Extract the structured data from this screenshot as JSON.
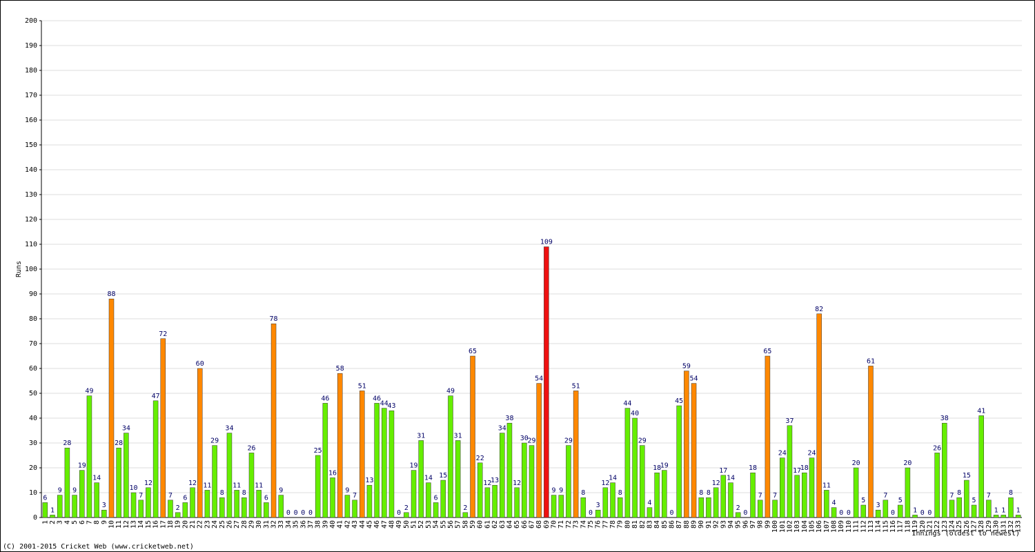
{
  "chart_data": {
    "type": "bar",
    "y_label": "Runs",
    "x_label": "Innings (oldest to newest)",
    "footer": "(C) 2001-2015 Cricket Web (www.cricketweb.net)",
    "categories": [
      "1",
      "2",
      "3",
      "4",
      "5",
      "6",
      "7",
      "8",
      "9",
      "10",
      "11",
      "12",
      "13",
      "14",
      "15",
      "16",
      "17",
      "18",
      "19",
      "20",
      "21",
      "22",
      "23",
      "24",
      "25",
      "26",
      "27",
      "28",
      "29",
      "30",
      "31",
      "32",
      "33",
      "34",
      "35",
      "36",
      "37",
      "38",
      "39",
      "40",
      "41",
      "42",
      "43",
      "44",
      "45",
      "46",
      "47",
      "48",
      "49",
      "50",
      "51",
      "52",
      "53",
      "54",
      "55",
      "56",
      "57",
      "58",
      "59",
      "60",
      "61",
      "62",
      "63",
      "64",
      "65",
      "66",
      "67",
      "68",
      "69",
      "70",
      "71",
      "72",
      "73",
      "74",
      "75",
      "76",
      "77",
      "78",
      "79",
      "80",
      "81",
      "82",
      "83",
      "84",
      "85",
      "86",
      "87",
      "88",
      "89",
      "90",
      "91",
      "92",
      "93",
      "94",
      "95",
      "96",
      "97",
      "98",
      "99",
      "100",
      "101",
      "102",
      "103",
      "104",
      "105",
      "106",
      "107",
      "108",
      "109",
      "110",
      "111",
      "112",
      "113",
      "114",
      "115",
      "116",
      "117",
      "118",
      "119",
      "120",
      "121",
      "122",
      "123",
      "124",
      "125",
      "126",
      "127",
      "128",
      "129",
      "130",
      "131",
      "132",
      "133"
    ],
    "values": [
      6,
      1,
      9,
      28,
      9,
      19,
      49,
      14,
      3,
      88,
      28,
      34,
      10,
      7,
      12,
      47,
      72,
      7,
      2,
      6,
      12,
      60,
      11,
      29,
      8,
      34,
      11,
      8,
      26,
      11,
      6,
      78,
      9,
      0,
      0,
      0,
      0,
      25,
      46,
      16,
      58,
      9,
      7,
      51,
      13,
      46,
      44,
      43,
      0,
      2,
      19,
      31,
      14,
      6,
      15,
      49,
      31,
      2,
      65,
      22,
      12,
      13,
      34,
      38,
      12,
      30,
      29,
      54,
      109,
      9,
      9,
      29,
      51,
      8,
      0,
      3,
      12,
      14,
      8,
      44,
      40,
      29,
      4,
      18,
      19,
      0,
      45,
      59,
      54,
      8,
      8,
      12,
      17,
      14,
      2,
      0,
      18,
      7,
      65,
      7,
      24,
      37,
      17,
      18,
      24,
      82,
      11,
      4,
      0,
      0,
      20,
      5,
      61,
      3,
      7,
      0,
      5,
      20,
      1,
      0,
      0,
      26,
      38,
      7,
      8,
      15,
      5,
      41,
      7,
      1,
      1,
      8,
      1
    ],
    "colors": [
      "#66ee00",
      "#66ee00",
      "#66ee00",
      "#66ee00",
      "#66ee00",
      "#66ee00",
      "#66ee00",
      "#66ee00",
      "#66ee00",
      "#ff8800",
      "#66ee00",
      "#66ee00",
      "#66ee00",
      "#66ee00",
      "#66ee00",
      "#66ee00",
      "#ff8800",
      "#66ee00",
      "#66ee00",
      "#66ee00",
      "#66ee00",
      "#ff8800",
      "#66ee00",
      "#66ee00",
      "#66ee00",
      "#66ee00",
      "#66ee00",
      "#66ee00",
      "#66ee00",
      "#66ee00",
      "#66ee00",
      "#ff8800",
      "#66ee00",
      "#66ee00",
      "#66ee00",
      "#66ee00",
      "#66ee00",
      "#66ee00",
      "#66ee00",
      "#66ee00",
      "#ff8800",
      "#66ee00",
      "#66ee00",
      "#ff8800",
      "#66ee00",
      "#66ee00",
      "#66ee00",
      "#66ee00",
      "#66ee00",
      "#66ee00",
      "#66ee00",
      "#66ee00",
      "#66ee00",
      "#66ee00",
      "#66ee00",
      "#66ee00",
      "#66ee00",
      "#66ee00",
      "#ff8800",
      "#66ee00",
      "#66ee00",
      "#66ee00",
      "#66ee00",
      "#66ee00",
      "#66ee00",
      "#66ee00",
      "#66ee00",
      "#ff8800",
      "#ee1111",
      "#66ee00",
      "#66ee00",
      "#66ee00",
      "#ff8800",
      "#66ee00",
      "#66ee00",
      "#66ee00",
      "#66ee00",
      "#66ee00",
      "#66ee00",
      "#66ee00",
      "#66ee00",
      "#66ee00",
      "#66ee00",
      "#66ee00",
      "#66ee00",
      "#66ee00",
      "#66ee00",
      "#ff8800",
      "#ff8800",
      "#66ee00",
      "#66ee00",
      "#66ee00",
      "#66ee00",
      "#66ee00",
      "#66ee00",
      "#66ee00",
      "#66ee00",
      "#66ee00",
      "#ff8800",
      "#66ee00",
      "#66ee00",
      "#66ee00",
      "#66ee00",
      "#66ee00",
      "#66ee00",
      "#ff8800",
      "#66ee00",
      "#66ee00",
      "#66ee00",
      "#66ee00",
      "#66ee00",
      "#66ee00",
      "#ff8800",
      "#66ee00",
      "#66ee00",
      "#66ee00",
      "#66ee00",
      "#66ee00",
      "#66ee00",
      "#66ee00",
      "#66ee00",
      "#66ee00",
      "#66ee00",
      "#66ee00",
      "#66ee00",
      "#66ee00",
      "#66ee00",
      "#66ee00",
      "#66ee00",
      "#66ee00",
      "#66ee00",
      "#66ee00",
      "#66ee00"
    ],
    "ylim": [
      0,
      200
    ],
    "yticks": [
      0,
      10,
      20,
      30,
      40,
      50,
      60,
      70,
      80,
      90,
      100,
      110,
      120,
      130,
      140,
      150,
      160,
      170,
      180,
      190,
      200
    ],
    "grid": true
  }
}
